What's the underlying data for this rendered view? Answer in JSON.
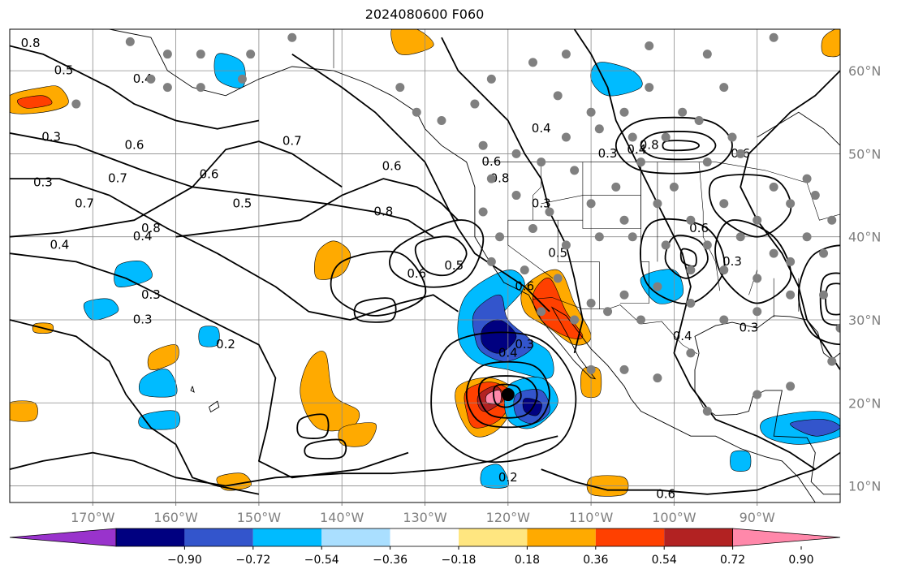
{
  "title": "2024080600 F060",
  "map": {
    "projection": "plate-carree",
    "lon_range": [
      -180,
      -80
    ],
    "lat_range": [
      8,
      65
    ],
    "gridline_interval_deg": 10,
    "grid": true,
    "features": [
      "coastlines",
      "country-borders",
      "us-state-borders"
    ]
  },
  "x_tick_labels": [
    "170°W",
    "160°W",
    "150°W",
    "140°W",
    "130°W",
    "120°W",
    "110°W",
    "100°W",
    "90°W"
  ],
  "y_tick_labels": [
    "10°N",
    "20°N",
    "30°N",
    "40°N",
    "50°N",
    "60°N"
  ],
  "colorbar": {
    "orientation": "horizontal",
    "extend": "both",
    "tick_labels": [
      "−0.90",
      "−0.72",
      "−0.54",
      "−0.36",
      "−0.18",
      "0.18",
      "0.36",
      "0.54",
      "0.72",
      "0.90"
    ],
    "colors": [
      "#9933cc",
      "#000080",
      "#3355cc",
      "#00bbff",
      "#aadfff",
      "#ffffff",
      "#ffe680",
      "#ffaa00",
      "#ff4000",
      "#b22222",
      "#ff88aa"
    ]
  },
  "contour_labels": [
    {
      "text": "0.8"
    },
    {
      "text": "0.5"
    },
    {
      "text": "0.4"
    },
    {
      "text": "0.3"
    },
    {
      "text": "0.7"
    },
    {
      "text": "0.6"
    },
    {
      "text": "0.8"
    },
    {
      "text": "0.7"
    },
    {
      "text": "0.6"
    },
    {
      "text": "0.5"
    },
    {
      "text": "0.4"
    },
    {
      "text": "0.3"
    },
    {
      "text": "0.3"
    },
    {
      "text": "0.2"
    },
    {
      "text": "0.4"
    },
    {
      "text": "0.3"
    },
    {
      "text": "0.7"
    },
    {
      "text": "0.6"
    },
    {
      "text": "0.8"
    },
    {
      "text": "0.6"
    },
    {
      "text": "0.6"
    },
    {
      "text": "0.4"
    },
    {
      "text": "0.3"
    },
    {
      "text": "0.8"
    },
    {
      "text": "0.5"
    },
    {
      "text": "0.4"
    },
    {
      "text": "0.3"
    },
    {
      "text": "0.5"
    },
    {
      "text": "0.6"
    },
    {
      "text": "0.4"
    },
    {
      "text": "0.3"
    },
    {
      "text": "0.8"
    },
    {
      "text": "0.6"
    },
    {
      "text": "0.6"
    },
    {
      "text": "0.4"
    },
    {
      "text": "0.3"
    },
    {
      "text": "0.2"
    },
    {
      "text": "0.6"
    },
    {
      "text": "0.3"
    }
  ],
  "storm_marker": {
    "lon": -120,
    "lat": 21,
    "color": "#000000"
  },
  "station_marker_color": "#808080",
  "station_points": [
    [
      -165.5,
      63.5
    ],
    [
      -161,
      62
    ],
    [
      -157,
      62
    ],
    [
      -151,
      62
    ],
    [
      -146,
      64
    ],
    [
      -172,
      56
    ],
    [
      -163,
      59
    ],
    [
      -157,
      58
    ],
    [
      -161,
      58
    ],
    [
      -152,
      59
    ],
    [
      -133,
      58
    ],
    [
      -131,
      55
    ],
    [
      -128,
      54
    ],
    [
      -124,
      56
    ],
    [
      -122,
      59
    ],
    [
      -117,
      61
    ],
    [
      -113,
      62
    ],
    [
      -103,
      63
    ],
    [
      -96,
      62
    ],
    [
      -88,
      64
    ],
    [
      -114,
      57
    ],
    [
      -110,
      55
    ],
    [
      -106,
      55
    ],
    [
      -103,
      58
    ],
    [
      -99,
      55
    ],
    [
      -94,
      58
    ],
    [
      -113,
      52
    ],
    [
      -109,
      53
    ],
    [
      -105,
      52
    ],
    [
      -101,
      52
    ],
    [
      -97,
      54
    ],
    [
      -93,
      52
    ],
    [
      -123,
      51
    ],
    [
      -119,
      50
    ],
    [
      -116,
      49
    ],
    [
      -112,
      48
    ],
    [
      -107,
      46
    ],
    [
      -104,
      49
    ],
    [
      -100,
      46
    ],
    [
      -96,
      49
    ],
    [
      -92,
      50
    ],
    [
      -88,
      46
    ],
    [
      -84,
      47
    ],
    [
      -122,
      47
    ],
    [
      -119,
      45
    ],
    [
      -115,
      43
    ],
    [
      -110,
      44
    ],
    [
      -106,
      42
    ],
    [
      -102,
      44
    ],
    [
      -98,
      42
    ],
    [
      -94,
      44
    ],
    [
      -90,
      42
    ],
    [
      -86,
      44
    ],
    [
      -83,
      45
    ],
    [
      -123,
      43
    ],
    [
      -121,
      40
    ],
    [
      -117,
      41
    ],
    [
      -113,
      39
    ],
    [
      -109,
      40
    ],
    [
      -105,
      40
    ],
    [
      -101,
      39
    ],
    [
      -96,
      39
    ],
    [
      -92,
      40
    ],
    [
      -88,
      38
    ],
    [
      -84,
      40
    ],
    [
      -81,
      42
    ],
    [
      -122,
      37
    ],
    [
      -118,
      36
    ],
    [
      -114,
      35
    ],
    [
      -110,
      32
    ],
    [
      -106,
      33
    ],
    [
      -102,
      34
    ],
    [
      -98,
      36
    ],
    [
      -94,
      36
    ],
    [
      -90,
      35
    ],
    [
      -86,
      37
    ],
    [
      -82,
      38
    ],
    [
      -116,
      31
    ],
    [
      -112,
      30
    ],
    [
      -108,
      31
    ],
    [
      -104,
      30
    ],
    [
      -98,
      32
    ],
    [
      -94,
      30
    ],
    [
      -90,
      31
    ],
    [
      -86,
      33
    ],
    [
      -82,
      33
    ],
    [
      -110,
      24
    ],
    [
      -106,
      24
    ],
    [
      -102,
      23
    ],
    [
      -98,
      26
    ],
    [
      -96,
      19
    ],
    [
      -90,
      21
    ],
    [
      -86,
      22
    ],
    [
      -81,
      25
    ],
    [
      -80,
      29
    ]
  ],
  "fill_regions": [
    {
      "level": 0.36,
      "color": "#ffaa00",
      "shape": [
        [
          -180,
          57
        ],
        [
          -176,
          58
        ],
        [
          -174,
          58
        ],
        [
          -173,
          56
        ],
        [
          -176,
          55
        ],
        [
          -180,
          55
        ]
      ]
    },
    {
      "level": 0.54,
      "color": "#ff4000",
      "shape": [
        [
          -179,
          56.5
        ],
        [
          -176,
          57
        ],
        [
          -175,
          56
        ],
        [
          -178,
          55.5
        ]
      ]
    },
    {
      "level": 0.36,
      "color": "#ffaa00",
      "shape": [
        [
          -134,
          65
        ],
        [
          -131,
          65
        ],
        [
          -129,
          63
        ],
        [
          -133,
          62
        ]
      ]
    },
    {
      "level": -0.54,
      "color": "#00bbff",
      "shape": [
        [
          -155,
          62
        ],
        [
          -152,
          61
        ],
        [
          -152,
          58
        ],
        [
          -155,
          59
        ]
      ]
    },
    {
      "level": -0.54,
      "color": "#00bbff",
      "shape": [
        [
          -109,
          61
        ],
        [
          -105,
          60
        ],
        [
          -104,
          58
        ],
        [
          -108,
          57
        ],
        [
          -110,
          59
        ]
      ]
    },
    {
      "level": 0.36,
      "color": "#ffaa00",
      "shape": [
        [
          -143,
          38
        ],
        [
          -141,
          39.5
        ],
        [
          -139,
          38
        ],
        [
          -140,
          35.5
        ],
        [
          -143,
          35
        ]
      ]
    },
    {
      "level": 0.36,
      "color": "#ffaa00",
      "shape": [
        [
          -177,
          29.5
        ],
        [
          -175,
          29.5
        ],
        [
          -175,
          28.5
        ],
        [
          -177,
          28.5
        ]
      ]
    },
    {
      "level": -0.54,
      "color": "#00bbff",
      "shape": [
        [
          -167,
          36.5
        ],
        [
          -164,
          37
        ],
        [
          -163,
          35
        ],
        [
          -167,
          34
        ]
      ]
    },
    {
      "level": -0.54,
      "color": "#00bbff",
      "shape": [
        [
          -171,
          32
        ],
        [
          -168,
          32.5
        ],
        [
          -167,
          31
        ],
        [
          -170,
          30
        ]
      ]
    },
    {
      "level": -0.54,
      "color": "#00bbff",
      "shape": [
        [
          -157,
          29
        ],
        [
          -155,
          29
        ],
        [
          -155,
          27
        ],
        [
          -157,
          27
        ]
      ]
    },
    {
      "level": 0.36,
      "color": "#ffaa00",
      "shape": [
        [
          -163,
          26
        ],
        [
          -160,
          27
        ],
        [
          -160,
          25
        ],
        [
          -163,
          24
        ]
      ]
    },
    {
      "level": -0.54,
      "color": "#00bbff",
      "shape": [
        [
          -164,
          23
        ],
        [
          -161,
          24
        ],
        [
          -160,
          21
        ],
        [
          -164,
          21
        ]
      ]
    },
    {
      "level": -0.54,
      "color": "#00bbff",
      "shape": [
        [
          -164,
          18.5
        ],
        [
          -160,
          19
        ],
        [
          -160,
          17
        ],
        [
          -164,
          17
        ]
      ]
    },
    {
      "level": 0.36,
      "color": "#ffaa00",
      "shape": [
        [
          -180,
          20
        ],
        [
          -177,
          20
        ],
        [
          -177,
          18
        ],
        [
          -180,
          18
        ]
      ]
    },
    {
      "level": 0.36,
      "color": "#ffaa00",
      "shape": [
        [
          -144,
          25
        ],
        [
          -142,
          26
        ],
        [
          -141,
          21
        ],
        [
          -138,
          19
        ],
        [
          -139,
          17
        ],
        [
          -143,
          17
        ],
        [
          -145,
          21
        ]
      ]
    },
    {
      "level": 0.36,
      "color": "#ffaa00",
      "shape": [
        [
          -140,
          17
        ],
        [
          -136,
          17.5
        ],
        [
          -137,
          15
        ],
        [
          -140,
          15
        ]
      ]
    },
    {
      "level": 0.36,
      "color": "#ffaa00",
      "shape": [
        [
          -155,
          11
        ],
        [
          -152,
          11.5
        ],
        [
          -151,
          10
        ],
        [
          -154,
          9.5
        ]
      ]
    },
    {
      "level": -0.54,
      "color": "#00bbff",
      "shape": [
        [
          -125,
          33
        ],
        [
          -120,
          36
        ],
        [
          -118,
          34
        ],
        [
          -121,
          30
        ],
        [
          -118,
          28
        ],
        [
          -115,
          26
        ],
        [
          -115,
          23
        ],
        [
          -120,
          24
        ],
        [
          -124,
          25
        ],
        [
          -126,
          28
        ]
      ]
    },
    {
      "level": -0.72,
      "color": "#3355cc",
      "shape": [
        [
          -124,
          31
        ],
        [
          -121,
          33
        ],
        [
          -120,
          30
        ],
        [
          -117,
          27
        ],
        [
          -120,
          25
        ],
        [
          -123,
          26
        ],
        [
          -124,
          28
        ]
      ]
    },
    {
      "level": -0.9,
      "color": "#000080",
      "shape": [
        [
          -123,
          29
        ],
        [
          -121,
          30
        ],
        [
          -119,
          28
        ],
        [
          -121,
          26
        ],
        [
          -123,
          27
        ]
      ]
    },
    {
      "level": 0.36,
      "color": "#ffaa00",
      "shape": [
        [
          -126,
          22
        ],
        [
          -122,
          23
        ],
        [
          -119,
          21
        ],
        [
          -121,
          17
        ],
        [
          -124,
          16
        ],
        [
          -126,
          19
        ]
      ]
    },
    {
      "level": 0.54,
      "color": "#ff4000",
      "shape": [
        [
          -125,
          21.5
        ],
        [
          -122,
          22.5
        ],
        [
          -119.5,
          21
        ],
        [
          -121,
          18
        ],
        [
          -124,
          17
        ],
        [
          -125,
          19
        ]
      ]
    },
    {
      "level": 0.72,
      "color": "#b22222",
      "shape": [
        [
          -123.5,
          21
        ],
        [
          -121.5,
          22
        ],
        [
          -120.5,
          20.5
        ],
        [
          -122.5,
          19
        ],
        [
          -123.5,
          19.5
        ]
      ]
    },
    {
      "level": 0.9,
      "color": "#ff88aa",
      "shape": [
        [
          -122.5,
          21
        ],
        [
          -121,
          21.5
        ],
        [
          -121,
          20
        ],
        [
          -122.5,
          20
        ]
      ]
    },
    {
      "level": -0.54,
      "color": "#00bbff",
      "shape": [
        [
          -120,
          22
        ],
        [
          -116,
          23
        ],
        [
          -114,
          20
        ],
        [
          -117,
          17
        ],
        [
          -120,
          18
        ]
      ]
    },
    {
      "level": -0.72,
      "color": "#3355cc",
      "shape": [
        [
          -119,
          21
        ],
        [
          -116,
          21.5
        ],
        [
          -115,
          19
        ],
        [
          -117,
          17.5
        ],
        [
          -119,
          18.5
        ]
      ]
    },
    {
      "level": -0.9,
      "color": "#000080",
      "shape": [
        [
          -118,
          20.5
        ],
        [
          -116,
          20
        ],
        [
          -116.5,
          18.5
        ],
        [
          -118,
          19
        ]
      ]
    },
    {
      "level": 0.36,
      "color": "#ffaa00",
      "shape": [
        [
          -118,
          34
        ],
        [
          -114,
          36
        ],
        [
          -112,
          32
        ],
        [
          -110,
          28
        ],
        [
          -112,
          27
        ],
        [
          -115,
          29
        ],
        [
          -118,
          31
        ]
      ]
    },
    {
      "level": 0.54,
      "color": "#ff4000",
      "shape": [
        [
          -117,
          33
        ],
        [
          -115,
          35
        ],
        [
          -113,
          31
        ],
        [
          -111,
          28
        ],
        [
          -113,
          28
        ],
        [
          -116,
          30
        ]
      ]
    },
    {
      "level": -0.54,
      "color": "#00bbff",
      "shape": [
        [
          -123,
          12
        ],
        [
          -121,
          12.5
        ],
        [
          -120,
          10
        ],
        [
          -123,
          10
        ]
      ]
    },
    {
      "level": 0.36,
      "color": "#ffaa00",
      "shape": [
        [
          -110,
          11
        ],
        [
          -106,
          11
        ],
        [
          -106,
          9
        ],
        [
          -110,
          9
        ]
      ]
    },
    {
      "level": 0.36,
      "color": "#ffaa00",
      "shape": [
        [
          -111,
          24
        ],
        [
          -109,
          24
        ],
        [
          -109,
          21
        ],
        [
          -111,
          21
        ]
      ]
    },
    {
      "level": -0.54,
      "color": "#00bbff",
      "shape": [
        [
          -104,
          35
        ],
        [
          -100,
          36
        ],
        [
          -99,
          33
        ],
        [
          -102,
          32
        ]
      ]
    },
    {
      "level": -0.54,
      "color": "#00bbff",
      "shape": [
        [
          -89,
          18
        ],
        [
          -83,
          19
        ],
        [
          -80,
          18
        ],
        [
          -80,
          16
        ],
        [
          -85,
          15
        ],
        [
          -89,
          16
        ]
      ]
    },
    {
      "level": -0.72,
      "color": "#3355cc",
      "shape": [
        [
          -86,
          17.5
        ],
        [
          -82,
          18
        ],
        [
          -80,
          17
        ],
        [
          -83,
          16
        ]
      ]
    },
    {
      "level": -0.54,
      "color": "#00bbff",
      "shape": [
        [
          -93,
          14
        ],
        [
          -91,
          14
        ],
        [
          -91,
          12
        ],
        [
          -93,
          12
        ]
      ]
    },
    {
      "level": 0.36,
      "color": "#ffaa00",
      "shape": [
        [
          -82,
          64
        ],
        [
          -80,
          65
        ],
        [
          -80,
          62
        ],
        [
          -82,
          62
        ]
      ]
    }
  ]
}
